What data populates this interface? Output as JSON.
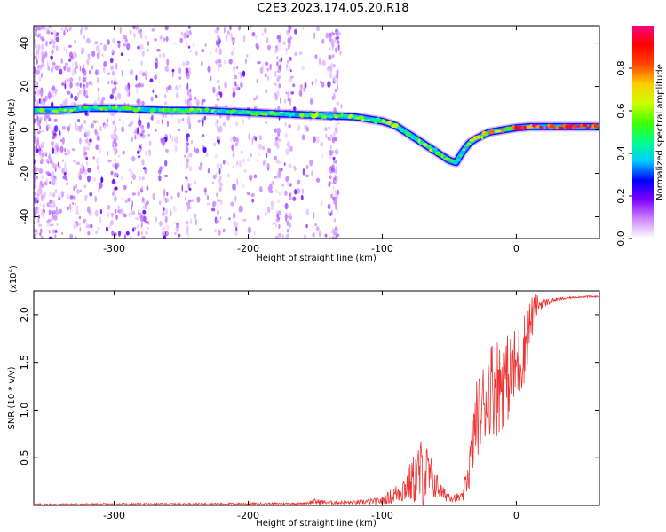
{
  "title": "C2E3.2023.174.05.20.R18",
  "chart_data": [
    {
      "type": "heatmap",
      "name": "spectrogram",
      "xlabel": "Height of straight line (km)",
      "ylabel": "Frequency (Hz)",
      "xlim": [
        -360,
        62
      ],
      "ylim": [
        -50,
        48
      ],
      "xticks": [
        -300,
        -200,
        -100,
        0
      ],
      "yticks": [
        -40,
        -20,
        0,
        20,
        40
      ],
      "ridge": {
        "x": [
          -355,
          -340,
          -320,
          -300,
          -280,
          -260,
          -240,
          -220,
          -200,
          -180,
          -160,
          -140,
          -120,
          -100,
          -90,
          -80,
          -70,
          -60,
          -50,
          -45,
          -40,
          -35,
          -30,
          -20,
          -10,
          0,
          10,
          20,
          40,
          60
        ],
        "y": [
          9,
          9,
          10,
          10,
          9.5,
          9,
          9,
          8.5,
          8,
          7.5,
          7,
          6.5,
          6,
          4,
          2,
          -2,
          -6,
          -10,
          -14,
          -15,
          -10,
          -6,
          -4,
          -1,
          0,
          1,
          1.5,
          1.5,
          1.5,
          1.5
        ]
      },
      "colorbar": {
        "label": "Normalized spectral amplitude",
        "range": [
          0,
          1
        ],
        "ticks": [
          "0.0",
          "0.2",
          "0.4",
          "0.6",
          "0.8"
        ],
        "colors": [
          "#ffffff",
          "#cc88ff",
          "#8000ff",
          "#0000ff",
          "#00ccff",
          "#00ff88",
          "#44ff00",
          "#ccff00",
          "#ffcc00",
          "#ff4400",
          "#ff0000",
          "#ff0080"
        ]
      }
    },
    {
      "type": "line",
      "name": "snr",
      "xlabel": "Height of straight line (km)",
      "ylabel": "SNR (10 * v/v)",
      "ylabel_multiplier": "(x10",
      "ylabel_multiplier_exp": "4",
      "ylabel_multiplier_close": ")",
      "xlim": [
        -360,
        62
      ],
      "ylim": [
        0,
        2.25
      ],
      "xticks": [
        -300,
        -200,
        -100,
        0
      ],
      "yticks": [
        0.5,
        1.0,
        1.5,
        2.0
      ],
      "yticklabels": [
        "0.5",
        "1.0",
        "1.5",
        "2.0"
      ],
      "color": "#ee3333",
      "envelope": {
        "x": [
          -360,
          -160,
          -150,
          -140,
          -120,
          -110,
          -100,
          -90,
          -80,
          -75,
          -70,
          -65,
          -60,
          -55,
          -50,
          -45,
          -40,
          -35,
          -30,
          -25,
          -20,
          -15,
          -10,
          -5,
          0,
          5,
          10,
          15,
          20,
          30,
          40,
          50,
          62
        ],
        "base": [
          0.01,
          0.02,
          0.04,
          0.03,
          0.03,
          0.04,
          0.05,
          0.12,
          0.22,
          0.3,
          0.35,
          0.3,
          0.22,
          0.12,
          0.1,
          0.08,
          0.08,
          0.4,
          0.9,
          1.05,
          1.25,
          1.25,
          1.3,
          1.35,
          1.45,
          1.6,
          1.9,
          2.1,
          2.12,
          2.16,
          2.18,
          2.19,
          2.19
        ],
        "amp": [
          0.01,
          0.01,
          0.03,
          0.02,
          0.02,
          0.03,
          0.04,
          0.1,
          0.2,
          0.3,
          0.4,
          0.3,
          0.15,
          0.08,
          0.06,
          0.05,
          0.05,
          0.25,
          0.4,
          0.45,
          0.5,
          0.55,
          0.5,
          0.45,
          0.45,
          0.4,
          0.3,
          0.12,
          0.05,
          0.02,
          0.01,
          0.01,
          0.01
        ]
      }
    }
  ]
}
